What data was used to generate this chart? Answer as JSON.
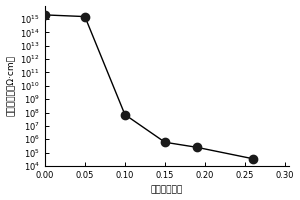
{
  "x": [
    0.0,
    0.05,
    0.1,
    0.15,
    0.19,
    0.26
  ],
  "y": [
    2000000000000000.0,
    1500000000000000.0,
    70000000.0,
    600000.0,
    250000.0,
    35000.0
  ],
  "xlabel": "碳纳米管含量",
  "ylabel": "体积电阴率（Ω·cm）",
  "xlim": [
    0.0,
    0.305
  ],
  "ylim_log_min": 4,
  "ylim_log_max": 16,
  "xticks": [
    0.0,
    0.05,
    0.1,
    0.15,
    0.2,
    0.25,
    0.3
  ],
  "xtick_labels": [
    "0.00",
    "0.05",
    "0.10",
    "0.15",
    "0.20",
    "0.25",
    "0.30"
  ],
  "background_color": "#ffffff",
  "line_color": "#000000",
  "marker_color": "#1a1a1a",
  "marker_size": 6,
  "fontsize_label": 6.5,
  "fontsize_tick": 6
}
